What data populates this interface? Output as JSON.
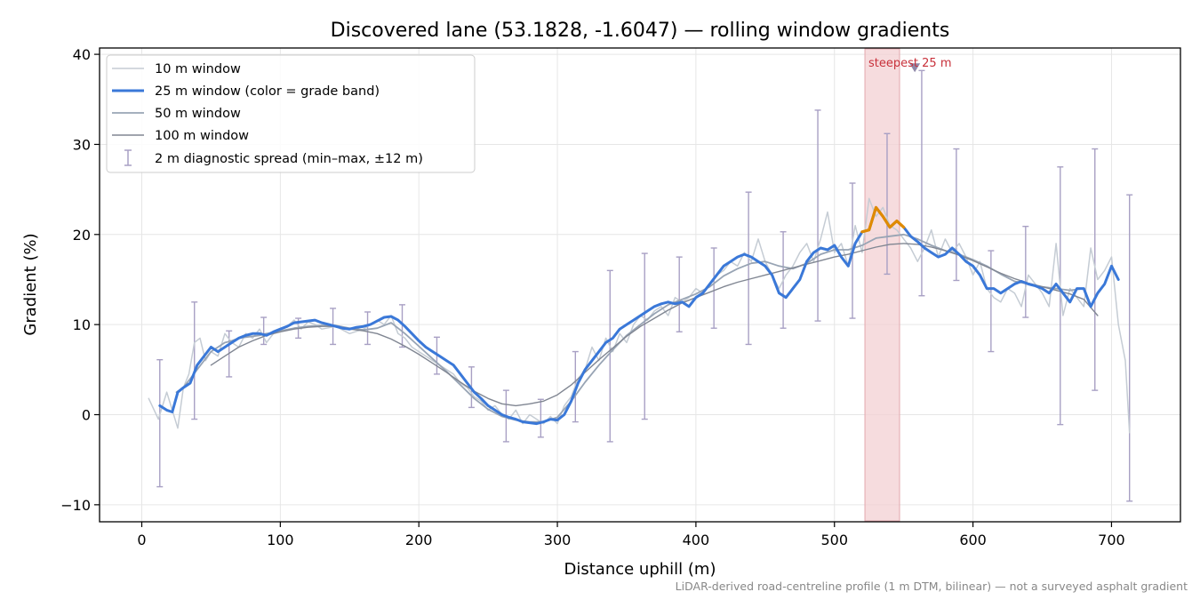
{
  "chart_data": {
    "type": "line",
    "title": "Discovered lane (53.1828, -1.6047) — rolling window gradients",
    "xlabel": "Distance uphill (m)",
    "ylabel": "Gradient (%)",
    "xlim": [
      -30,
      750
    ],
    "ylim": [
      -12,
      41
    ],
    "x_ticks": [
      0,
      100,
      200,
      300,
      400,
      500,
      600,
      700
    ],
    "y_ticks": [
      -10,
      0,
      10,
      20,
      30,
      40
    ],
    "grid": true,
    "legend_position": "top-left",
    "footnote": "LiDAR-derived road-centreline profile (1 m DTM, bilinear) — not a surveyed asphalt gradient",
    "highlight": {
      "label": "steepest 25 m",
      "x_range": [
        522,
        547
      ],
      "marker_x": 558,
      "marker_y": 38.5,
      "color": "#f3d0d3"
    },
    "colors": {
      "w10": "#c5ccd4",
      "w25_normal": "#3a78d8",
      "w25_steep": "#e08a00",
      "w50": "#98a4b4",
      "w100": "#808692",
      "errorbar": "#a8a0c4",
      "highlight_text": "#c8303a",
      "marker": "#8f88a8"
    },
    "series": [
      {
        "name": "10 m window",
        "x": [
          5,
          12,
          18,
          22,
          26,
          30,
          34,
          38,
          42,
          46,
          50,
          55,
          60,
          65,
          70,
          75,
          80,
          85,
          90,
          95,
          100,
          105,
          110,
          115,
          120,
          125,
          130,
          140,
          150,
          160,
          170,
          175,
          180,
          185,
          190,
          195,
          200,
          205,
          210,
          215,
          220,
          225,
          230,
          235,
          240,
          245,
          250,
          255,
          260,
          265,
          270,
          275,
          280,
          285,
          290,
          295,
          300,
          305,
          310,
          315,
          320,
          325,
          330,
          335,
          340,
          345,
          350,
          355,
          360,
          365,
          370,
          375,
          380,
          385,
          390,
          395,
          400,
          405,
          410,
          415,
          420,
          425,
          430,
          435,
          440,
          445,
          450,
          455,
          460,
          465,
          470,
          475,
          480,
          485,
          490,
          495,
          500,
          505,
          510,
          515,
          520,
          525,
          530,
          535,
          540,
          545,
          550,
          555,
          560,
          565,
          570,
          575,
          580,
          585,
          590,
          595,
          600,
          605,
          610,
          615,
          620,
          625,
          630,
          635,
          640,
          645,
          650,
          655,
          660,
          665,
          670,
          675,
          680,
          685,
          690,
          695,
          700,
          705,
          710,
          713
        ],
        "y": [
          1.8,
          -0.5,
          2.5,
          0.5,
          -1.5,
          3.0,
          4.5,
          8.0,
          8.5,
          6.0,
          7.0,
          6.5,
          9.0,
          8.0,
          7.5,
          9.0,
          8.5,
          9.5,
          8.0,
          9.0,
          9.5,
          9.8,
          10.5,
          9.5,
          10.3,
          10.0,
          9.5,
          9.8,
          9.0,
          9.5,
          10.5,
          10.0,
          11.0,
          9.0,
          8.5,
          7.5,
          7.0,
          6.5,
          6.0,
          5.5,
          5.0,
          4.5,
          3.5,
          3.0,
          2.0,
          1.5,
          0.5,
          1.0,
          0.0,
          -0.5,
          0.5,
          -1.0,
          0.0,
          -0.5,
          -1.0,
          -0.2,
          -1.0,
          1.0,
          2.0,
          4.0,
          5.0,
          7.5,
          6.0,
          8.5,
          7.0,
          9.0,
          8.0,
          10.0,
          11.0,
          10.5,
          11.5,
          12.0,
          11.0,
          13.0,
          12.5,
          13.0,
          14.0,
          13.5,
          14.5,
          15.5,
          16.0,
          17.0,
          16.5,
          18.0,
          17.0,
          19.5,
          17.0,
          15.5,
          14.0,
          15.5,
          16.5,
          18.0,
          19.0,
          17.0,
          19.5,
          22.5,
          18.0,
          19.0,
          16.5,
          21.0,
          18.0,
          24.0,
          22.0,
          23.0,
          21.0,
          20.5,
          19.5,
          18.5,
          17.0,
          18.5,
          20.5,
          17.5,
          19.5,
          18.0,
          19.0,
          17.5,
          15.5,
          17.0,
          14.0,
          13.0,
          12.5,
          14.0,
          13.5,
          12.0,
          15.5,
          14.5,
          13.5,
          12.0,
          19.0,
          11.0,
          14.0,
          13.0,
          12.0,
          18.5,
          15.0,
          16.0,
          17.5,
          10.0,
          6.0,
          -2.0
        ]
      },
      {
        "name": "25 m window (color = grade band)",
        "x": [
          13,
          18,
          22,
          26,
          30,
          35,
          40,
          45,
          50,
          55,
          60,
          65,
          70,
          75,
          80,
          85,
          90,
          95,
          100,
          105,
          110,
          115,
          120,
          125,
          130,
          135,
          140,
          145,
          150,
          155,
          160,
          165,
          170,
          175,
          180,
          185,
          190,
          195,
          200,
          205,
          210,
          215,
          220,
          225,
          230,
          235,
          240,
          245,
          250,
          255,
          260,
          265,
          270,
          275,
          280,
          285,
          290,
          295,
          300,
          305,
          310,
          315,
          320,
          325,
          330,
          335,
          340,
          345,
          350,
          355,
          360,
          365,
          370,
          375,
          380,
          385,
          390,
          395,
          400,
          405,
          410,
          415,
          420,
          425,
          430,
          435,
          440,
          445,
          450,
          455,
          460,
          465,
          470,
          475,
          480,
          485,
          490,
          495,
          500,
          505,
          510,
          515,
          520,
          525,
          530,
          535,
          540,
          545,
          550,
          555,
          560,
          565,
          570,
          575,
          580,
          585,
          590,
          595,
          600,
          605,
          610,
          615,
          620,
          625,
          630,
          635,
          640,
          645,
          650,
          655,
          660,
          665,
          670,
          675,
          680,
          685,
          690,
          695,
          700,
          705
        ],
        "y": [
          1.0,
          0.5,
          0.3,
          2.5,
          3.0,
          3.5,
          5.5,
          6.5,
          7.5,
          7.0,
          7.5,
          8.0,
          8.5,
          8.8,
          9.0,
          9.0,
          8.8,
          9.2,
          9.5,
          9.8,
          10.2,
          10.3,
          10.4,
          10.5,
          10.2,
          10.0,
          9.8,
          9.6,
          9.5,
          9.7,
          9.8,
          10.0,
          10.4,
          10.8,
          10.9,
          10.5,
          9.8,
          9.0,
          8.2,
          7.5,
          7.0,
          6.5,
          6.0,
          5.5,
          4.5,
          3.5,
          2.5,
          1.8,
          1.0,
          0.5,
          0.0,
          -0.3,
          -0.5,
          -0.8,
          -0.9,
          -1.0,
          -0.8,
          -0.5,
          -0.6,
          0.0,
          1.5,
          3.5,
          5.0,
          6.0,
          7.0,
          8.0,
          8.5,
          9.5,
          10.0,
          10.5,
          11.0,
          11.5,
          12.0,
          12.3,
          12.5,
          12.3,
          12.5,
          12.0,
          13.0,
          13.5,
          14.5,
          15.5,
          16.5,
          17.0,
          17.5,
          17.8,
          17.5,
          17.0,
          16.5,
          15.5,
          13.5,
          13.0,
          14.0,
          15.0,
          17.0,
          18.0,
          18.5,
          18.3,
          18.8,
          17.5,
          16.5,
          19.0,
          20.3,
          20.5,
          23.0,
          22.0,
          20.8,
          21.5,
          20.8,
          19.8,
          19.2,
          18.5,
          18.0,
          17.5,
          17.8,
          18.5,
          17.8,
          17.0,
          16.5,
          15.5,
          14.0,
          14.0,
          13.5,
          14.0,
          14.5,
          14.8,
          14.5,
          14.3,
          14.0,
          13.5,
          14.5,
          13.5,
          12.5,
          14.0,
          14.0,
          12.0,
          13.5,
          14.5,
          16.5,
          15.0
        ]
      },
      {
        "name": "50 m window",
        "x": [
          25,
          30,
          35,
          40,
          45,
          50,
          55,
          60,
          65,
          70,
          75,
          80,
          85,
          90,
          95,
          100,
          110,
          120,
          130,
          140,
          150,
          160,
          170,
          180,
          190,
          200,
          210,
          220,
          230,
          240,
          250,
          260,
          270,
          280,
          290,
          300,
          310,
          320,
          330,
          340,
          350,
          360,
          370,
          380,
          390,
          400,
          410,
          420,
          430,
          440,
          450,
          460,
          470,
          480,
          490,
          500,
          510,
          520,
          530,
          540,
          550,
          560,
          570,
          580,
          590,
          600,
          610,
          620,
          630,
          640,
          650,
          660,
          670,
          680
        ],
        "y": [
          2.5,
          3.0,
          4.0,
          5.0,
          6.0,
          7.0,
          7.5,
          8.0,
          8.2,
          8.5,
          8.6,
          8.7,
          8.8,
          9.0,
          9.1,
          9.3,
          9.6,
          9.8,
          9.9,
          9.9,
          9.6,
          9.4,
          9.6,
          10.2,
          9.0,
          7.6,
          6.2,
          4.8,
          3.3,
          1.8,
          0.6,
          -0.2,
          -0.6,
          -0.8,
          -0.8,
          -0.3,
          1.5,
          3.6,
          5.5,
          7.2,
          8.8,
          10.0,
          11.2,
          12.2,
          12.8,
          13.4,
          14.2,
          15.4,
          16.2,
          16.8,
          17.0,
          16.5,
          16.2,
          16.8,
          17.8,
          18.3,
          18.3,
          18.8,
          19.6,
          19.8,
          20.0,
          19.5,
          18.8,
          18.2,
          17.8,
          17.2,
          16.5,
          15.6,
          14.8,
          14.5,
          14.2,
          14.0,
          13.8,
          14.0
        ]
      },
      {
        "name": "100 m window",
        "x": [
          50,
          60,
          70,
          80,
          90,
          100,
          110,
          120,
          130,
          140,
          150,
          160,
          170,
          180,
          190,
          200,
          210,
          220,
          230,
          240,
          250,
          260,
          270,
          280,
          290,
          300,
          310,
          320,
          330,
          340,
          350,
          360,
          370,
          380,
          390,
          400,
          410,
          420,
          430,
          440,
          450,
          460,
          470,
          480,
          490,
          500,
          510,
          520,
          530,
          540,
          550,
          560,
          570,
          580,
          590,
          600,
          610,
          620,
          630,
          640,
          650,
          660,
          670,
          680,
          690
        ],
        "y": [
          5.5,
          6.5,
          7.5,
          8.2,
          8.8,
          9.2,
          9.5,
          9.7,
          9.8,
          9.8,
          9.5,
          9.3,
          9.0,
          8.4,
          7.6,
          6.7,
          5.7,
          4.7,
          3.6,
          2.6,
          1.8,
          1.2,
          1.0,
          1.2,
          1.5,
          2.2,
          3.3,
          4.7,
          6.1,
          7.4,
          8.7,
          9.8,
          10.7,
          11.6,
          12.4,
          13.0,
          13.6,
          14.2,
          14.7,
          15.1,
          15.5,
          15.9,
          16.3,
          16.7,
          17.1,
          17.5,
          17.8,
          18.2,
          18.6,
          18.9,
          19.0,
          18.9,
          18.6,
          18.2,
          17.7,
          17.1,
          16.4,
          15.7,
          15.1,
          14.6,
          14.2,
          13.8,
          13.4,
          12.8,
          11.0
        ]
      }
    ],
    "steep_segment": {
      "x": [
        520,
        525,
        530,
        535,
        540,
        545,
        550
      ],
      "y": [
        20.3,
        20.5,
        23.0,
        22.0,
        20.8,
        21.5,
        20.8
      ]
    },
    "errorbars": {
      "name": "2 m diagnostic spread (min–max, ±12 m)",
      "x": [
        13,
        38,
        63,
        88,
        113,
        138,
        163,
        188,
        213,
        238,
        263,
        288,
        313,
        338,
        363,
        388,
        413,
        438,
        463,
        488,
        513,
        538,
        563,
        588,
        613,
        638,
        663,
        688,
        713
      ],
      "lo": [
        -8,
        -0.5,
        4.2,
        7.8,
        8.5,
        7.8,
        7.8,
        7.5,
        4.5,
        0.8,
        -3.0,
        -2.5,
        -0.8,
        -3.0,
        -0.5,
        9.2,
        9.6,
        7.8,
        9.6,
        10.4,
        10.7,
        15.6,
        13.2,
        14.9,
        7.0,
        10.8,
        -1.1,
        2.7,
        -9.6
      ],
      "hi": [
        6.1,
        12.5,
        9.3,
        10.8,
        10.7,
        11.8,
        11.4,
        12.2,
        8.6,
        5.3,
        2.7,
        1.7,
        7.0,
        16.0,
        17.9,
        17.5,
        18.5,
        24.7,
        20.3,
        33.8,
        25.7,
        31.2,
        38.2,
        29.5,
        18.2,
        20.9,
        27.5,
        29.5,
        24.4
      ]
    }
  }
}
